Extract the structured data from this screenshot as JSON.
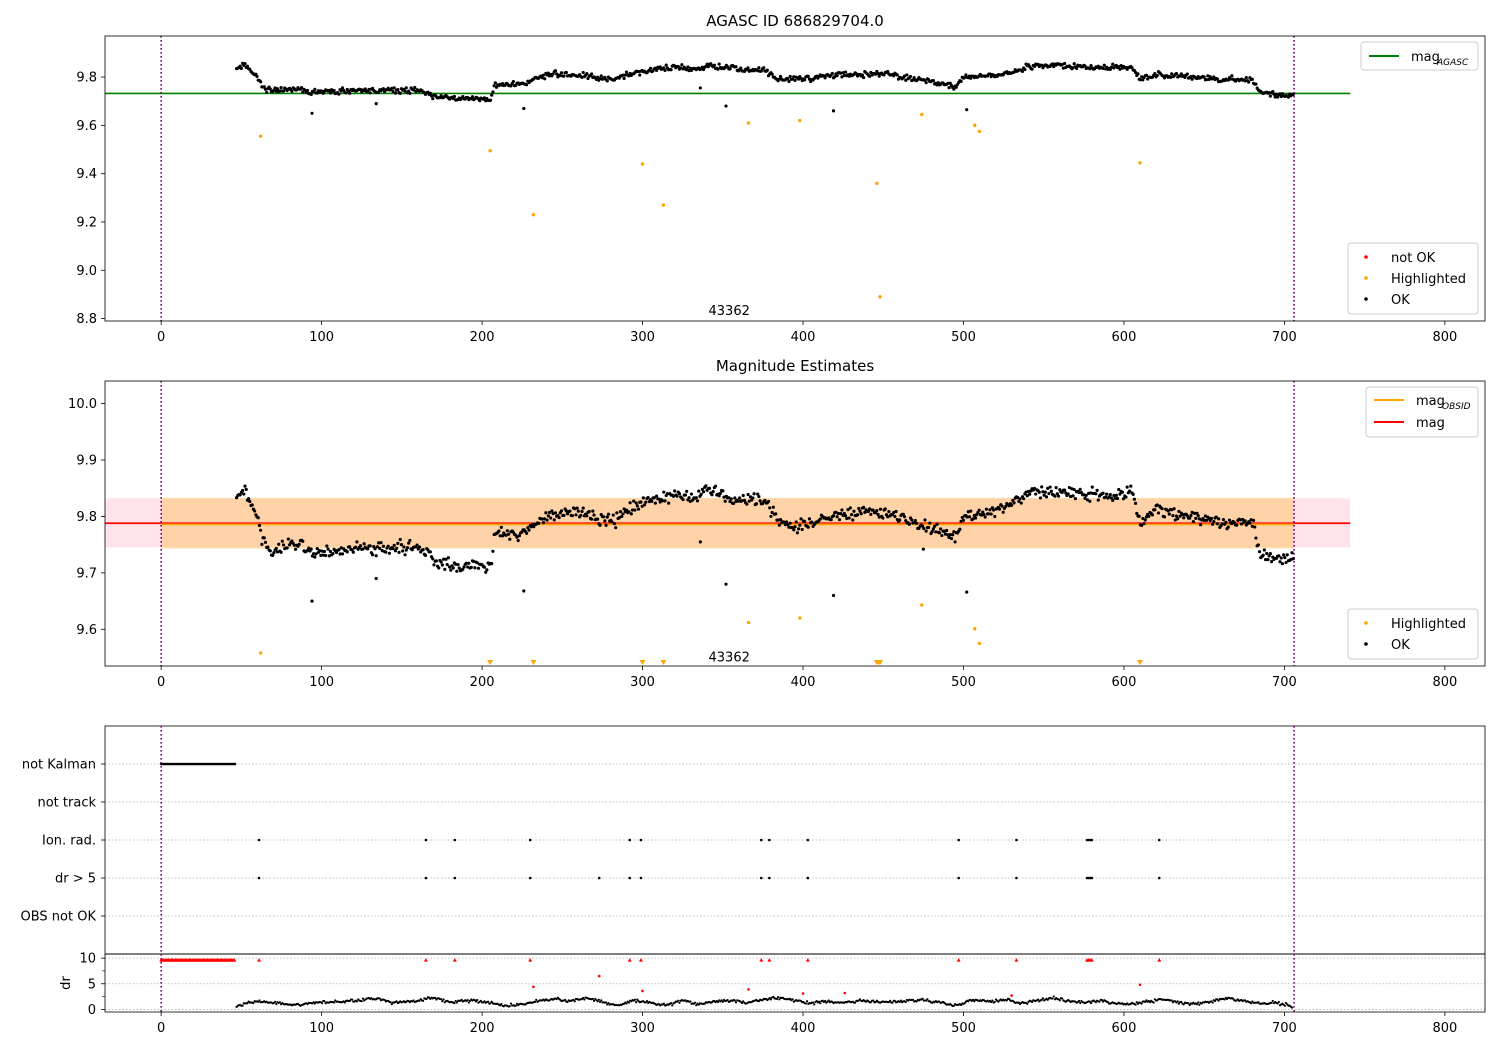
{
  "chart_data": [
    {
      "type": "scatter",
      "title": "AGASC ID 686829704.0",
      "xlim": [
        -35,
        825
      ],
      "ylim": [
        8.79,
        9.97
      ],
      "xticks": [
        0,
        100,
        200,
        300,
        400,
        500,
        600,
        700,
        800
      ],
      "yticks": [
        8.8,
        9.0,
        9.2,
        9.4,
        9.6,
        9.8
      ],
      "vlines": [
        0,
        706
      ],
      "hline": {
        "label_main": "mag",
        "label_sub": "AGASC",
        "value": 9.732,
        "x_end": 741,
        "color": "#008000"
      },
      "annotation": {
        "text": "43362",
        "x": 354,
        "y": 8.82
      },
      "legend_lines_position": "upper right",
      "legend_points_position": "lower right",
      "legend_points": [
        {
          "name": "not OK",
          "color": "#ff0000"
        },
        {
          "name": "Highlighted",
          "color": "#ffa500"
        },
        {
          "name": "OK",
          "color": "#000000"
        }
      ],
      "ok_trend": [
        [
          47,
          9.83
        ],
        [
          52,
          9.85
        ],
        [
          57,
          9.82
        ],
        [
          60,
          9.8
        ],
        [
          63,
          9.76
        ],
        [
          68,
          9.745
        ],
        [
          75,
          9.745
        ],
        [
          85,
          9.75
        ],
        [
          95,
          9.735
        ],
        [
          110,
          9.74
        ],
        [
          125,
          9.745
        ],
        [
          140,
          9.745
        ],
        [
          150,
          9.745
        ],
        [
          162,
          9.745
        ],
        [
          170,
          9.72
        ],
        [
          185,
          9.71
        ],
        [
          195,
          9.715
        ],
        [
          205,
          9.71
        ],
        [
          208,
          9.77
        ],
        [
          225,
          9.77
        ],
        [
          240,
          9.81
        ],
        [
          260,
          9.81
        ],
        [
          280,
          9.79
        ],
        [
          290,
          9.81
        ],
        [
          305,
          9.83
        ],
        [
          322,
          9.84
        ],
        [
          333,
          9.83
        ],
        [
          340,
          9.85
        ],
        [
          355,
          9.84
        ],
        [
          360,
          9.83
        ],
        [
          375,
          9.83
        ],
        [
          385,
          9.79
        ],
        [
          400,
          9.79
        ],
        [
          420,
          9.81
        ],
        [
          440,
          9.81
        ],
        [
          455,
          9.81
        ],
        [
          470,
          9.79
        ],
        [
          480,
          9.78
        ],
        [
          495,
          9.76
        ],
        [
          500,
          9.8
        ],
        [
          520,
          9.81
        ],
        [
          540,
          9.84
        ],
        [
          555,
          9.85
        ],
        [
          575,
          9.84
        ],
        [
          590,
          9.84
        ],
        [
          605,
          9.84
        ],
        [
          610,
          9.79
        ],
        [
          620,
          9.81
        ],
        [
          640,
          9.8
        ],
        [
          660,
          9.79
        ],
        [
          680,
          9.79
        ],
        [
          685,
          9.735
        ],
        [
          700,
          9.72
        ],
        [
          705,
          9.725
        ]
      ],
      "ok_outliers": [
        [
          94,
          9.65
        ],
        [
          134,
          9.69
        ],
        [
          226,
          9.67
        ],
        [
          352,
          9.68
        ],
        [
          502,
          9.665
        ],
        [
          419,
          9.66
        ],
        [
          336,
          9.755
        ]
      ],
      "highlighted_points": [
        [
          62,
          9.555
        ],
        [
          205,
          9.495
        ],
        [
          232,
          9.23
        ],
        [
          300,
          9.44
        ],
        [
          313,
          9.27
        ],
        [
          366,
          9.61
        ],
        [
          398,
          9.62
        ],
        [
          446,
          9.36
        ],
        [
          448,
          8.89
        ],
        [
          474,
          9.645
        ],
        [
          507,
          9.6
        ],
        [
          510,
          9.575
        ],
        [
          610,
          9.445
        ]
      ],
      "not_ok_points": []
    },
    {
      "type": "scatter",
      "title": "Magnitude Estimates",
      "xlim": [
        -35,
        825
      ],
      "ylim": [
        9.535,
        10.04
      ],
      "xticks": [
        0,
        100,
        200,
        300,
        400,
        500,
        600,
        700,
        800
      ],
      "yticks": [
        9.6,
        9.7,
        9.8,
        9.9,
        10.0
      ],
      "vlines": [
        0,
        706
      ],
      "bands": [
        {
          "x": [
            -35,
            741
          ],
          "y": [
            9.745,
            9.832
          ],
          "color": "#ffc0cb",
          "opacity": 0.45
        },
        {
          "x": [
            0,
            706
          ],
          "y": [
            9.743,
            9.833
          ],
          "color": "#ffa500",
          "opacity": 0.28
        }
      ],
      "hlines": [
        {
          "label": "mag",
          "value": 9.788,
          "x": [
            -35,
            741
          ],
          "color": "#ff0000"
        },
        {
          "label_main": "mag",
          "label_sub": "OBSID",
          "value": 9.786,
          "x": [
            0,
            706
          ],
          "color": "#ffa500"
        }
      ],
      "annotation": {
        "text": "43362",
        "x": 354,
        "y": 9.55
      },
      "legend_lines_position": "upper right",
      "legend_points_position": "lower right",
      "legend_lines": [
        {
          "name_main": "mag",
          "name_sub": "OBSID",
          "color": "#ffa500"
        },
        {
          "name": "mag",
          "color": "#ff0000"
        }
      ],
      "legend_points": [
        {
          "name": "Highlighted",
          "color": "#ffa500"
        },
        {
          "name": "OK",
          "color": "#000000"
        }
      ],
      "ok_trend": [
        [
          47,
          9.835
        ],
        [
          52,
          9.85
        ],
        [
          57,
          9.82
        ],
        [
          60,
          9.8
        ],
        [
          63,
          9.76
        ],
        [
          68,
          9.74
        ],
        [
          75,
          9.745
        ],
        [
          85,
          9.75
        ],
        [
          95,
          9.735
        ],
        [
          110,
          9.74
        ],
        [
          125,
          9.745
        ],
        [
          140,
          9.745
        ],
        [
          150,
          9.745
        ],
        [
          162,
          9.745
        ],
        [
          170,
          9.72
        ],
        [
          185,
          9.71
        ],
        [
          195,
          9.715
        ],
        [
          205,
          9.71
        ],
        [
          208,
          9.77
        ],
        [
          225,
          9.77
        ],
        [
          240,
          9.8
        ],
        [
          260,
          9.81
        ],
        [
          280,
          9.79
        ],
        [
          290,
          9.81
        ],
        [
          305,
          9.83
        ],
        [
          322,
          9.84
        ],
        [
          333,
          9.83
        ],
        [
          340,
          9.85
        ],
        [
          355,
          9.83
        ],
        [
          360,
          9.83
        ],
        [
          375,
          9.83
        ],
        [
          385,
          9.79
        ],
        [
          400,
          9.785
        ],
        [
          420,
          9.8
        ],
        [
          440,
          9.81
        ],
        [
          455,
          9.8
        ],
        [
          470,
          9.79
        ],
        [
          480,
          9.78
        ],
        [
          495,
          9.76
        ],
        [
          500,
          9.8
        ],
        [
          520,
          9.81
        ],
        [
          540,
          9.84
        ],
        [
          555,
          9.845
        ],
        [
          575,
          9.84
        ],
        [
          590,
          9.835
        ],
        [
          605,
          9.84
        ],
        [
          610,
          9.79
        ],
        [
          620,
          9.81
        ],
        [
          640,
          9.8
        ],
        [
          660,
          9.79
        ],
        [
          680,
          9.79
        ],
        [
          685,
          9.735
        ],
        [
          700,
          9.72
        ],
        [
          705,
          9.725
        ]
      ],
      "ok_outliers": [
        [
          94,
          9.65
        ],
        [
          134,
          9.69
        ],
        [
          226,
          9.668
        ],
        [
          352,
          9.68
        ],
        [
          502,
          9.666
        ],
        [
          419,
          9.66
        ],
        [
          336,
          9.755
        ],
        [
          475,
          9.742
        ]
      ],
      "highlighted_points": [
        [
          62,
          9.558
        ],
        [
          366,
          9.612
        ],
        [
          398,
          9.62
        ],
        [
          474,
          9.643
        ],
        [
          507,
          9.601
        ],
        [
          510,
          9.575
        ]
      ],
      "offscale_markers": [
        205,
        232,
        300,
        313,
        446,
        447,
        448,
        610
      ]
    },
    {
      "type": "scatter",
      "xlim": [
        -35,
        825
      ],
      "ylim": [
        -0.5,
        10.8
      ],
      "xticks": [
        0,
        100,
        200,
        300,
        400,
        500,
        600,
        700,
        800
      ],
      "yticks": [
        0,
        5,
        10
      ],
      "ylabel": "dr",
      "vlines": [
        0,
        706
      ],
      "flag_rows": [
        "not Kalman",
        "not track",
        "Ion. rad.",
        "dr > 5",
        "OBS not OK"
      ],
      "flags": {
        "not Kalman": {
          "range": [
            0,
            46
          ]
        },
        "not track": {
          "x": []
        },
        "Ion. rad.": {
          "x": [
            61,
            165,
            183,
            230,
            292,
            299,
            374,
            379,
            403,
            497,
            533,
            577,
            578,
            579,
            580,
            622
          ]
        },
        "dr > 5": {
          "x": [
            61,
            165,
            183,
            230,
            273,
            292,
            299,
            374,
            379,
            403,
            497,
            533,
            577,
            578,
            579,
            580,
            622
          ]
        },
        "OBS not OK": {
          "x": []
        }
      },
      "dr_capped_points": {
        "range": [
          0,
          46
        ],
        "x": [
          61,
          165,
          183,
          230,
          292,
          299,
          374,
          379,
          403,
          497,
          533,
          577,
          578,
          579,
          580,
          622
        ]
      },
      "dr_red_points": [
        [
          232,
          4.4
        ],
        [
          273,
          6.5
        ],
        [
          300,
          3.6
        ],
        [
          366,
          3.9
        ],
        [
          400,
          3.1
        ],
        [
          426,
          3.2
        ],
        [
          530,
          2.7
        ],
        [
          610,
          4.8
        ]
      ],
      "dr_trend": [
        [
          47,
          0.5
        ],
        [
          55,
          1.4
        ],
        [
          65,
          1.6
        ],
        [
          75,
          1.2
        ],
        [
          85,
          0.8
        ],
        [
          95,
          1.3
        ],
        [
          110,
          1.4
        ],
        [
          125,
          1.8
        ],
        [
          135,
          2.2
        ],
        [
          145,
          1.3
        ],
        [
          160,
          1.7
        ],
        [
          170,
          2.3
        ],
        [
          180,
          1.4
        ],
        [
          195,
          1.8
        ],
        [
          205,
          1.2
        ],
        [
          215,
          0.7
        ],
        [
          225,
          1.0
        ],
        [
          235,
          1.6
        ],
        [
          245,
          2.1
        ],
        [
          255,
          1.6
        ],
        [
          265,
          2.3
        ],
        [
          275,
          1.4
        ],
        [
          285,
          0.8
        ],
        [
          295,
          1.8
        ],
        [
          305,
          1.3
        ],
        [
          315,
          0.8
        ],
        [
          325,
          1.7
        ],
        [
          335,
          1.0
        ],
        [
          345,
          1.5
        ],
        [
          355,
          1.7
        ],
        [
          365,
          1.2
        ],
        [
          375,
          2.0
        ],
        [
          385,
          2.2
        ],
        [
          395,
          1.7
        ],
        [
          405,
          1.3
        ],
        [
          415,
          1.6
        ],
        [
          425,
          1.3
        ],
        [
          435,
          1.7
        ],
        [
          445,
          1.5
        ],
        [
          455,
          1.4
        ],
        [
          465,
          1.6
        ],
        [
          475,
          1.8
        ],
        [
          485,
          1.4
        ],
        [
          495,
          0.7
        ],
        [
          505,
          1.9
        ],
        [
          515,
          1.5
        ],
        [
          525,
          2.0
        ],
        [
          535,
          1.2
        ],
        [
          545,
          1.6
        ],
        [
          555,
          2.3
        ],
        [
          565,
          1.6
        ],
        [
          575,
          1.4
        ],
        [
          585,
          1.7
        ],
        [
          595,
          1.2
        ],
        [
          605,
          1.0
        ],
        [
          615,
          1.6
        ],
        [
          625,
          2.0
        ],
        [
          635,
          1.3
        ],
        [
          645,
          1.0
        ],
        [
          655,
          1.6
        ],
        [
          665,
          2.2
        ],
        [
          675,
          1.6
        ],
        [
          685,
          1.2
        ],
        [
          695,
          1.3
        ],
        [
          705,
          0.6
        ]
      ]
    }
  ]
}
